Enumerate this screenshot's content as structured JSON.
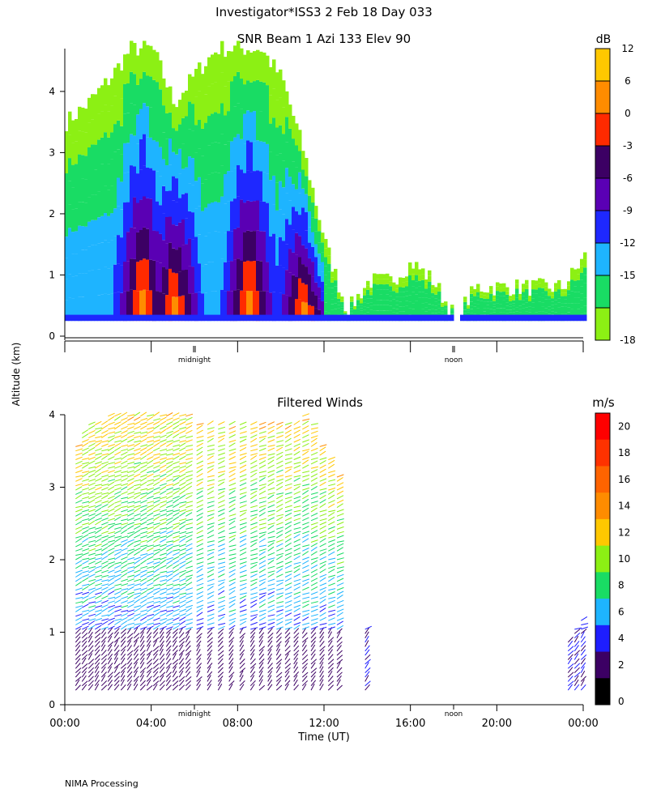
{
  "header": {
    "title": "Investigator*ISS3    2 Feb 18 Day 033"
  },
  "footer": {
    "credit": "NIMA Processing"
  },
  "shared": {
    "ylabel": "Altitude (km)",
    "xlabel": "Time (UT)",
    "x_ticks": [
      "00:00",
      "04:00",
      "08:00",
      "12:00",
      "16:00",
      "20:00",
      "00:00"
    ],
    "markers": [
      "midnight",
      "noon"
    ],
    "marker_hours": [
      6,
      18
    ]
  },
  "chart_data": [
    {
      "type": "heatmap",
      "title": "SNR Beam 1 Azi 133 Elev 90",
      "colorbar_label": "dB",
      "colorbar_ticks": [
        "12",
        "6",
        "0",
        "-3",
        "-6",
        "-9",
        "-12",
        "-15",
        "-18"
      ],
      "colorbar_colors": [
        "#ffc800",
        "#ff8c00",
        "#ff2a00",
        "#3c0064",
        "#5a00b4",
        "#1e28ff",
        "#1eb4ff",
        "#19dc64",
        "#8cf014"
      ],
      "y_ticks": [
        "0",
        "1",
        "2",
        "3",
        "4"
      ],
      "ylim": [
        0,
        4.7
      ],
      "xlim_hours": [
        0,
        24
      ],
      "approx_top_profile_km": [
        [
          0,
          3.5
        ],
        [
          1,
          3.8
        ],
        [
          2,
          4.2
        ],
        [
          3,
          4.7
        ],
        [
          4,
          4.7
        ],
        [
          5,
          3.8
        ],
        [
          6,
          4.3
        ],
        [
          7,
          4.7
        ],
        [
          8,
          4.7
        ],
        [
          9,
          4.7
        ],
        [
          10,
          4.2
        ],
        [
          11,
          3.0
        ],
        [
          12,
          1.5
        ],
        [
          13,
          0.4
        ],
        [
          14,
          0.9
        ],
        [
          15,
          0.9
        ],
        [
          16,
          1.2
        ],
        [
          17,
          0.9
        ],
        [
          18,
          0.3
        ],
        [
          19,
          0.8
        ],
        [
          20,
          0.8
        ],
        [
          21,
          0.8
        ],
        [
          22,
          0.8
        ],
        [
          23,
          0.8
        ],
        [
          24,
          1.3
        ]
      ],
      "approx_core_0dB_km": [
        [
          3.5,
          0.3,
          1.7
        ],
        [
          5.0,
          0.3,
          1.8
        ],
        [
          8.5,
          0.3,
          1.6
        ],
        [
          11.0,
          0.3,
          1.2
        ]
      ]
    },
    {
      "type": "scatter",
      "title": "Filtered Winds",
      "colorbar_label": "m/s",
      "colorbar_ticks": [
        "20",
        "18",
        "16",
        "14",
        "12",
        "10",
        "8",
        "6",
        "4",
        "2",
        "0"
      ],
      "colorbar_colors": [
        "#000000",
        "#3c0064",
        "#1e1eff",
        "#1eb4ff",
        "#19dc64",
        "#8cf014",
        "#ffc800",
        "#ff8c00",
        "#ff6400",
        "#ff3200",
        "#ff0000"
      ],
      "y_ticks": [
        "0",
        "1",
        "2",
        "3",
        "4"
      ],
      "ylim": [
        0,
        4
      ],
      "xlim_hours": [
        0,
        24
      ],
      "speed_lim_ms": [
        0,
        22
      ],
      "profile_hours": [
        0.5,
        0.8,
        1.1,
        1.4,
        1.7,
        2.0,
        2.3,
        2.6,
        2.9,
        3.2,
        3.5,
        3.8,
        4.1,
        4.4,
        4.7,
        5.0,
        5.3,
        5.6,
        6.1,
        6.6,
        7.1,
        7.6,
        8.1,
        8.6,
        9.0,
        9.4,
        9.8,
        10.2,
        10.6,
        11.0,
        11.4,
        11.8,
        12.2,
        12.6,
        13.9,
        23.3,
        23.6,
        23.9
      ],
      "profile_tops_km": [
        3.6,
        3.8,
        3.9,
        3.9,
        3.9,
        4.0,
        4.0,
        4.0,
        4.0,
        4.0,
        4.0,
        4.0,
        4.0,
        4.0,
        4.0,
        4.0,
        4.0,
        4.0,
        3.9,
        3.9,
        3.9,
        3.9,
        3.9,
        3.9,
        3.9,
        3.9,
        3.9,
        3.9,
        3.9,
        4.0,
        3.9,
        3.6,
        3.4,
        3.2,
        1.1,
        0.9,
        1.1,
        1.2
      ],
      "surface_band_speed_ms": 2,
      "upper_band_speed_ms": 6,
      "top_speed_ms": 13
    }
  ]
}
